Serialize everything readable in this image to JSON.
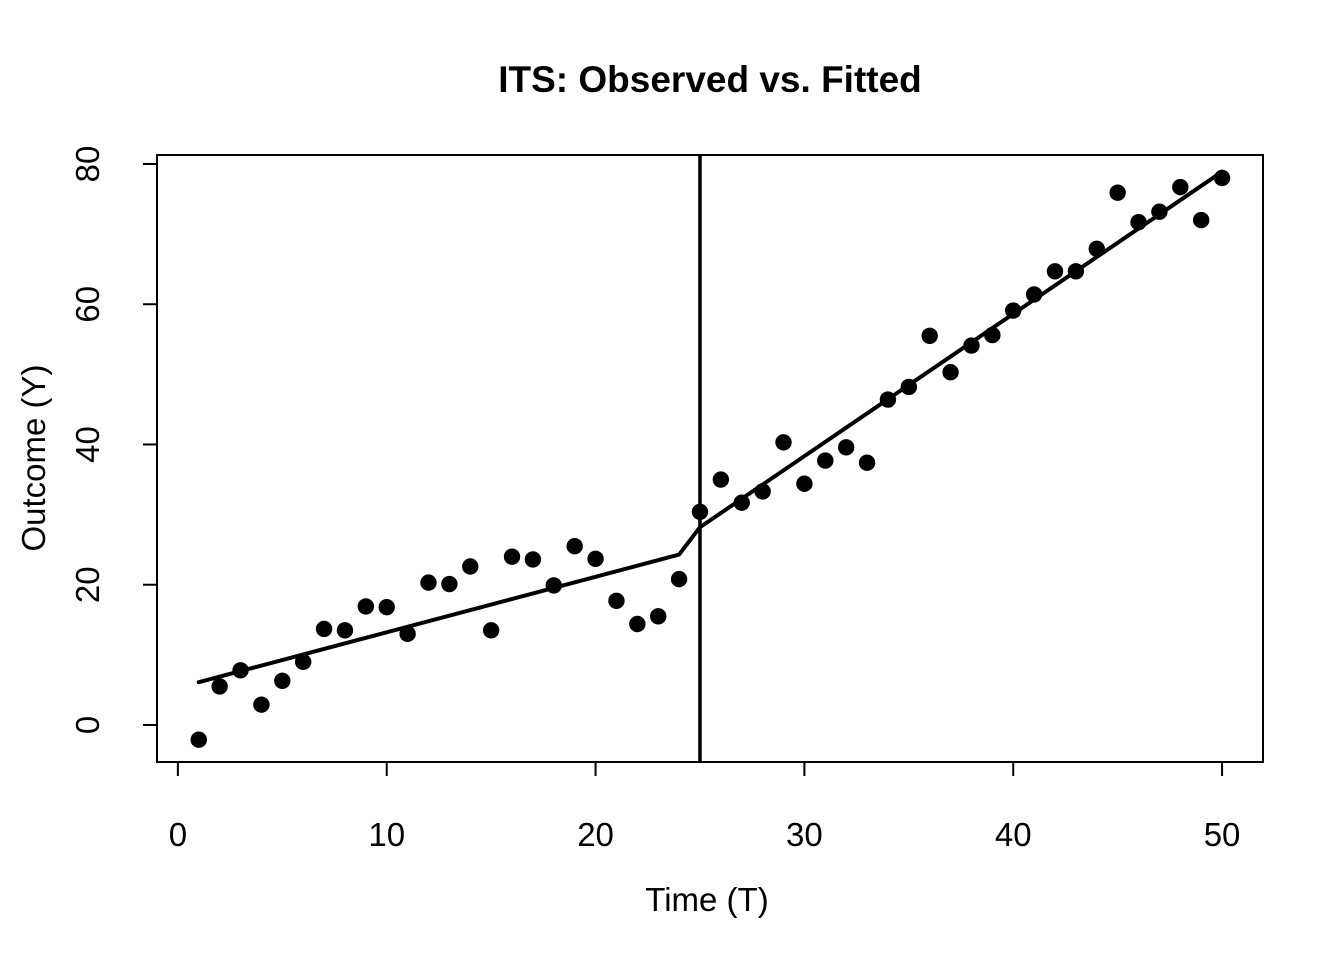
{
  "figure": {
    "title": "ITS: Observed vs. Fitted",
    "xlabel": "Time (T)",
    "ylabel": "Outcome (Y)"
  },
  "chart_data": {
    "type": "scatter",
    "title": "ITS: Observed vs. Fitted",
    "xlabel": "Time (T)",
    "ylabel": "Outcome (Y)",
    "xlim": [
      -1.0,
      51.96
    ],
    "ylim": [
      -5.28,
      81.28
    ],
    "x_ticks": [
      0,
      10,
      20,
      30,
      40,
      50
    ],
    "y_ticks": [
      0,
      20,
      40,
      60,
      80
    ],
    "grid": false,
    "legend_position": "none",
    "background_color": "#ffffff",
    "point_color": "#000000",
    "line_color": "#000000",
    "intervention_time": 25,
    "series": [
      {
        "name": "observed-points",
        "kind": "scatter",
        "x": [
          1,
          2,
          3,
          4,
          5,
          6,
          7,
          8,
          9,
          10,
          11,
          12,
          13,
          14,
          15,
          16,
          17,
          18,
          19,
          20,
          21,
          22,
          23,
          24,
          25,
          26,
          27,
          28,
          29,
          30,
          31,
          32,
          33,
          34,
          35,
          36,
          37,
          38,
          39,
          40,
          41,
          42,
          43,
          44,
          45,
          46,
          47,
          48,
          49,
          50
        ],
        "y": [
          -2.1,
          5.5,
          7.8,
          2.9,
          6.3,
          9.0,
          13.7,
          13.5,
          16.9,
          16.8,
          13.0,
          20.3,
          20.1,
          22.6,
          13.5,
          24.0,
          23.6,
          19.9,
          25.5,
          23.7,
          17.7,
          14.4,
          15.5,
          20.8,
          30.4,
          35.0,
          31.7,
          33.3,
          40.3,
          34.4,
          37.7,
          39.6,
          37.4,
          46.4,
          48.2,
          55.5,
          50.3,
          54.1,
          55.6,
          59.1,
          61.4,
          64.7,
          64.7,
          67.9,
          75.9,
          71.7,
          73.2,
          76.7,
          72.0,
          78.0
        ]
      },
      {
        "name": "fitted-line",
        "kind": "line",
        "x": [
          1,
          24,
          25,
          50
        ],
        "y": [
          6.1,
          24.3,
          28.2,
          78.9
        ]
      },
      {
        "name": "intervention-vline",
        "kind": "vline",
        "x": 25
      }
    ]
  }
}
